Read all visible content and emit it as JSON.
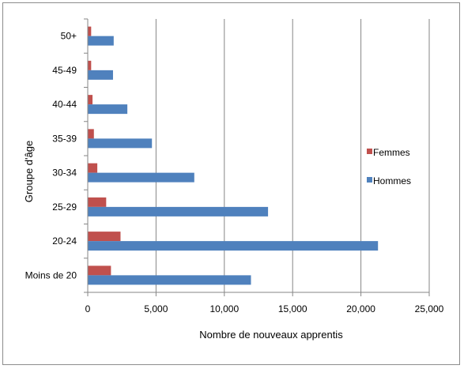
{
  "chart_data": {
    "type": "bar",
    "orientation": "horizontal",
    "categories": [
      "Moins de 20",
      "20-24",
      "25-29",
      "30-34",
      "35-39",
      "40-44",
      "45-49",
      "50+"
    ],
    "series": [
      {
        "name": "Femmes",
        "color": "#c0504d",
        "values": [
          1700,
          2400,
          1350,
          700,
          450,
          350,
          250,
          250
        ]
      },
      {
        "name": "Hommes",
        "color": "#4f81bd",
        "values": [
          11950,
          21250,
          13200,
          7800,
          4700,
          2900,
          1850,
          1900
        ]
      }
    ],
    "xlabel": "Nombre de nouveaux apprentis",
    "ylabel": "Groupe d'âge",
    "xlim": [
      0,
      25000
    ],
    "xticks": [
      "0",
      "5,000",
      "10,000",
      "15,000",
      "20,000",
      "25,000"
    ],
    "grid": "vertical",
    "legend_position": "right"
  }
}
